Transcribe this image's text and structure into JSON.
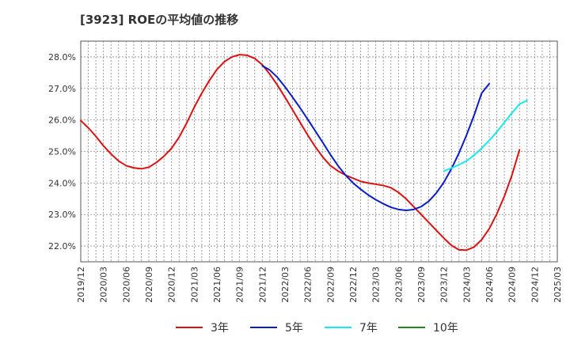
{
  "title": "[3923]  ROEの平均値の推移",
  "chart_data": {
    "type": "line",
    "title": "[3923]  ROEの平均値の推移",
    "xlabel": "",
    "ylabel": "",
    "x_ticks": [
      "2019/12",
      "2020/03",
      "2020/06",
      "2020/09",
      "2020/12",
      "2021/03",
      "2021/06",
      "2021/09",
      "2021/12",
      "2022/03",
      "2022/06",
      "2022/09",
      "2022/12",
      "2023/03",
      "2023/06",
      "2023/09",
      "2023/12",
      "2024/03",
      "2024/06",
      "2024/09",
      "2024/12",
      "2025/03"
    ],
    "y_ticks": [
      "22.0%",
      "23.0%",
      "24.0%",
      "25.0%",
      "26.0%",
      "27.0%",
      "28.0%"
    ],
    "ylim": [
      21.5,
      28.5
    ],
    "grid": true,
    "legend_position": "bottom",
    "series": [
      {
        "name": "3年",
        "color": "#dd1111",
        "points": [
          [
            "2019/12",
            25.98
          ],
          [
            "2020/01",
            25.75
          ],
          [
            "2020/02",
            25.48
          ],
          [
            "2020/03",
            25.18
          ],
          [
            "2020/04",
            24.92
          ],
          [
            "2020/05",
            24.7
          ],
          [
            "2020/06",
            24.55
          ],
          [
            "2020/07",
            24.48
          ],
          [
            "2020/08",
            24.45
          ],
          [
            "2020/09",
            24.5
          ],
          [
            "2020/10",
            24.65
          ],
          [
            "2020/11",
            24.85
          ],
          [
            "2020/12",
            25.1
          ],
          [
            "2021/01",
            25.45
          ],
          [
            "2021/02",
            25.9
          ],
          [
            "2021/03",
            26.4
          ],
          [
            "2021/04",
            26.85
          ],
          [
            "2021/05",
            27.25
          ],
          [
            "2021/06",
            27.6
          ],
          [
            "2021/07",
            27.85
          ],
          [
            "2021/08",
            28.0
          ],
          [
            "2021/09",
            28.07
          ],
          [
            "2021/10",
            28.05
          ],
          [
            "2021/11",
            27.95
          ],
          [
            "2021/12",
            27.75
          ],
          [
            "2022/01",
            27.45
          ],
          [
            "2022/02",
            27.1
          ],
          [
            "2022/03",
            26.72
          ],
          [
            "2022/04",
            26.32
          ],
          [
            "2022/05",
            25.92
          ],
          [
            "2022/06",
            25.52
          ],
          [
            "2022/07",
            25.15
          ],
          [
            "2022/08",
            24.82
          ],
          [
            "2022/09",
            24.55
          ],
          [
            "2022/10",
            24.38
          ],
          [
            "2022/11",
            24.25
          ],
          [
            "2022/12",
            24.15
          ],
          [
            "2023/01",
            24.05
          ],
          [
            "2023/02",
            24.0
          ],
          [
            "2023/03",
            23.96
          ],
          [
            "2023/04",
            23.92
          ],
          [
            "2023/05",
            23.85
          ],
          [
            "2023/06",
            23.7
          ],
          [
            "2023/07",
            23.5
          ],
          [
            "2023/08",
            23.25
          ],
          [
            "2023/09",
            23.0
          ],
          [
            "2023/10",
            22.75
          ],
          [
            "2023/11",
            22.5
          ],
          [
            "2023/12",
            22.25
          ],
          [
            "2024/01",
            22.02
          ],
          [
            "2024/02",
            21.88
          ],
          [
            "2024/03",
            21.87
          ],
          [
            "2024/04",
            21.97
          ],
          [
            "2024/05",
            22.2
          ],
          [
            "2024/06",
            22.55
          ],
          [
            "2024/07",
            23.02
          ],
          [
            "2024/08",
            23.58
          ],
          [
            "2024/09",
            24.25
          ],
          [
            "2024/10",
            25.05
          ]
        ]
      },
      {
        "name": "5年",
        "color": "#0a1ec8",
        "points": [
          [
            "2021/12",
            27.72
          ],
          [
            "2022/01",
            27.58
          ],
          [
            "2022/02",
            27.35
          ],
          [
            "2022/03",
            27.05
          ],
          [
            "2022/04",
            26.72
          ],
          [
            "2022/05",
            26.38
          ],
          [
            "2022/06",
            26.02
          ],
          [
            "2022/07",
            25.65
          ],
          [
            "2022/08",
            25.28
          ],
          [
            "2022/09",
            24.9
          ],
          [
            "2022/10",
            24.55
          ],
          [
            "2022/11",
            24.25
          ],
          [
            "2022/12",
            24.0
          ],
          [
            "2023/01",
            23.8
          ],
          [
            "2023/02",
            23.62
          ],
          [
            "2023/03",
            23.47
          ],
          [
            "2023/04",
            23.34
          ],
          [
            "2023/05",
            23.23
          ],
          [
            "2023/06",
            23.16
          ],
          [
            "2023/07",
            23.13
          ],
          [
            "2023/08",
            23.16
          ],
          [
            "2023/09",
            23.25
          ],
          [
            "2023/10",
            23.42
          ],
          [
            "2023/11",
            23.68
          ],
          [
            "2023/12",
            24.02
          ],
          [
            "2024/01",
            24.45
          ],
          [
            "2024/02",
            24.95
          ],
          [
            "2024/03",
            25.52
          ],
          [
            "2024/04",
            26.15
          ],
          [
            "2024/05",
            26.85
          ],
          [
            "2024/06",
            27.15
          ]
        ]
      },
      {
        "name": "7年",
        "color": "#18e8f0",
        "points": [
          [
            "2023/12",
            24.38
          ],
          [
            "2024/01",
            24.47
          ],
          [
            "2024/02",
            24.58
          ],
          [
            "2024/03",
            24.7
          ],
          [
            "2024/04",
            24.88
          ],
          [
            "2024/05",
            25.1
          ],
          [
            "2024/06",
            25.35
          ],
          [
            "2024/07",
            25.62
          ],
          [
            "2024/08",
            25.92
          ],
          [
            "2024/09",
            26.22
          ],
          [
            "2024/10",
            26.5
          ],
          [
            "2024/11",
            26.62
          ]
        ]
      },
      {
        "name": "10年",
        "color": "#1a8a1a",
        "points": []
      }
    ]
  }
}
